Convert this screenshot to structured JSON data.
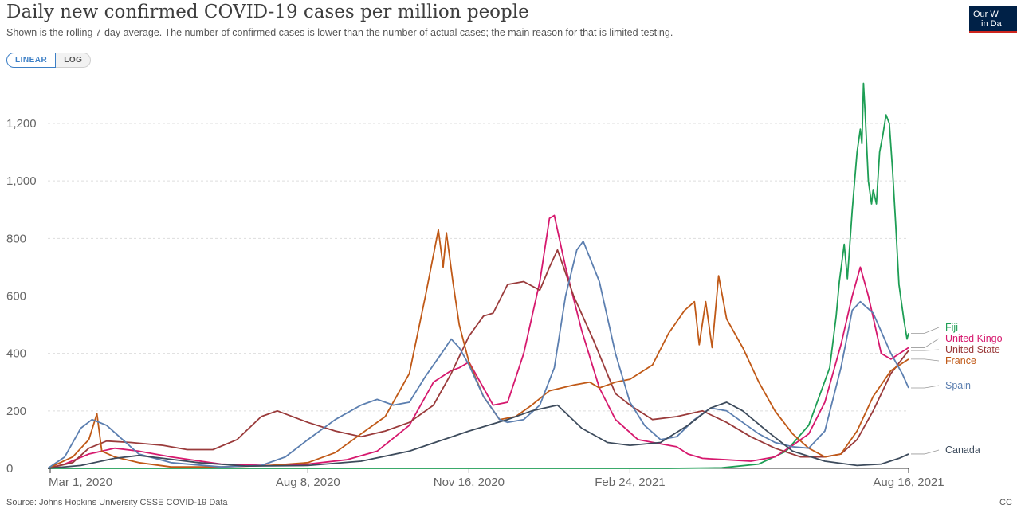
{
  "header": {
    "title": "Daily new confirmed COVID-19 cases per million people",
    "subtitle": "Shown is the rolling 7-day average. The number of confirmed cases is lower than the number of actual cases; the main reason for that is limited testing.",
    "logo_line1": "Our W",
    "logo_line2": "in Da"
  },
  "controls": {
    "linear_label": "LINEAR",
    "log_label": "LOG"
  },
  "footer": {
    "source": "Source: Johns Hopkins University CSSE COVID-19 Data",
    "license": "CC"
  },
  "colors": {
    "grid": "#dddddd",
    "axis": "#333333",
    "tick_text": "#666666"
  },
  "chart_data": {
    "type": "line",
    "title": "Daily new confirmed COVID-19 cases per million people",
    "xlabel": "",
    "ylabel": "",
    "x_range": [
      "2020-02-22",
      "2021-08-16"
    ],
    "x_ticks": [
      {
        "date": "2020-03-01",
        "label": "Mar 1, 2020"
      },
      {
        "date": "2020-08-08",
        "label": "Aug 8, 2020"
      },
      {
        "date": "2020-11-16",
        "label": "Nov 16, 2020"
      },
      {
        "date": "2021-02-24",
        "label": "Feb 24, 2021"
      },
      {
        "date": "2021-08-16",
        "label": "Aug 16, 2021"
      }
    ],
    "ylim": [
      0,
      1300
    ],
    "y_ticks": [
      0,
      200,
      400,
      600,
      800,
      1000,
      1200
    ],
    "y_tick_labels": [
      "0",
      "200",
      "400",
      "600",
      "800",
      "1,000",
      "1,200"
    ],
    "grid": true,
    "legend": "right-end labels",
    "series": [
      {
        "name": "Fiji",
        "color": "#1e9e55",
        "points": [
          [
            "2020-02-22",
            0
          ],
          [
            "2021-03-20",
            0
          ],
          [
            "2021-04-22",
            2
          ],
          [
            "2021-05-15",
            15
          ],
          [
            "2021-06-01",
            60
          ],
          [
            "2021-06-15",
            150
          ],
          [
            "2021-06-28",
            350
          ],
          [
            "2021-07-02",
            530
          ],
          [
            "2021-07-04",
            650
          ],
          [
            "2021-07-07",
            780
          ],
          [
            "2021-07-09",
            660
          ],
          [
            "2021-07-12",
            900
          ],
          [
            "2021-07-15",
            1100
          ],
          [
            "2021-07-17",
            1180
          ],
          [
            "2021-07-18",
            1130
          ],
          [
            "2021-07-19",
            1340
          ],
          [
            "2021-07-20",
            1240
          ],
          [
            "2021-07-22",
            1000
          ],
          [
            "2021-07-24",
            920
          ],
          [
            "2021-07-25",
            970
          ],
          [
            "2021-07-27",
            920
          ],
          [
            "2021-07-29",
            1100
          ],
          [
            "2021-07-31",
            1160
          ],
          [
            "2021-08-02",
            1230
          ],
          [
            "2021-08-04",
            1200
          ],
          [
            "2021-08-06",
            1040
          ],
          [
            "2021-08-08",
            850
          ],
          [
            "2021-08-10",
            640
          ],
          [
            "2021-08-13",
            520
          ],
          [
            "2021-08-15",
            450
          ],
          [
            "2021-08-16",
            470
          ]
        ]
      },
      {
        "name": "United Kingdom",
        "color": "#d6196e",
        "points": [
          [
            "2020-02-22",
            0
          ],
          [
            "2020-03-10",
            15
          ],
          [
            "2020-03-25",
            50
          ],
          [
            "2020-04-10",
            70
          ],
          [
            "2020-04-25",
            60
          ],
          [
            "2020-05-15",
            40
          ],
          [
            "2020-06-15",
            15
          ],
          [
            "2020-07-15",
            10
          ],
          [
            "2020-08-08",
            15
          ],
          [
            "2020-09-01",
            30
          ],
          [
            "2020-09-20",
            60
          ],
          [
            "2020-10-10",
            150
          ],
          [
            "2020-10-25",
            300
          ],
          [
            "2020-11-05",
            340
          ],
          [
            "2020-11-10",
            350
          ],
          [
            "2020-11-16",
            370
          ],
          [
            "2020-11-25",
            280
          ],
          [
            "2020-12-01",
            220
          ],
          [
            "2020-12-10",
            230
          ],
          [
            "2020-12-20",
            400
          ],
          [
            "2020-12-30",
            650
          ],
          [
            "2021-01-05",
            870
          ],
          [
            "2021-01-08",
            880
          ],
          [
            "2021-01-15",
            700
          ],
          [
            "2021-01-25",
            480
          ],
          [
            "2021-02-05",
            280
          ],
          [
            "2021-02-15",
            170
          ],
          [
            "2021-03-01",
            100
          ],
          [
            "2021-03-15",
            85
          ],
          [
            "2021-03-25",
            75
          ],
          [
            "2021-04-01",
            50
          ],
          [
            "2021-04-10",
            35
          ],
          [
            "2021-04-25",
            30
          ],
          [
            "2021-05-10",
            25
          ],
          [
            "2021-05-25",
            40
          ],
          [
            "2021-06-05",
            80
          ],
          [
            "2021-06-15",
            120
          ],
          [
            "2021-06-25",
            230
          ],
          [
            "2021-07-05",
            430
          ],
          [
            "2021-07-12",
            600
          ],
          [
            "2021-07-17",
            700
          ],
          [
            "2021-07-22",
            600
          ],
          [
            "2021-07-30",
            400
          ],
          [
            "2021-08-05",
            380
          ],
          [
            "2021-08-16",
            420
          ]
        ]
      },
      {
        "name": "United States",
        "color": "#9a3b3b",
        "points": [
          [
            "2020-02-22",
            0
          ],
          [
            "2020-03-15",
            20
          ],
          [
            "2020-03-25",
            70
          ],
          [
            "2020-04-05",
            95
          ],
          [
            "2020-04-20",
            90
          ],
          [
            "2020-05-10",
            80
          ],
          [
            "2020-05-25",
            65
          ],
          [
            "2020-06-10",
            65
          ],
          [
            "2020-06-25",
            100
          ],
          [
            "2020-07-10",
            180
          ],
          [
            "2020-07-20",
            200
          ],
          [
            "2020-08-08",
            160
          ],
          [
            "2020-08-25",
            130
          ],
          [
            "2020-09-10",
            110
          ],
          [
            "2020-09-25",
            130
          ],
          [
            "2020-10-10",
            160
          ],
          [
            "2020-10-25",
            220
          ],
          [
            "2020-11-05",
            330
          ],
          [
            "2020-11-16",
            460
          ],
          [
            "2020-11-25",
            530
          ],
          [
            "2020-12-01",
            540
          ],
          [
            "2020-12-10",
            640
          ],
          [
            "2020-12-20",
            650
          ],
          [
            "2020-12-30",
            620
          ],
          [
            "2021-01-05",
            700
          ],
          [
            "2021-01-10",
            760
          ],
          [
            "2021-01-20",
            600
          ],
          [
            "2021-02-01",
            450
          ],
          [
            "2021-02-15",
            260
          ],
          [
            "2021-02-24",
            220
          ],
          [
            "2021-03-10",
            170
          ],
          [
            "2021-03-25",
            180
          ],
          [
            "2021-04-10",
            200
          ],
          [
            "2021-04-25",
            160
          ],
          [
            "2021-05-10",
            110
          ],
          [
            "2021-05-25",
            70
          ],
          [
            "2021-06-10",
            40
          ],
          [
            "2021-06-25",
            40
          ],
          [
            "2021-07-05",
            50
          ],
          [
            "2021-07-15",
            100
          ],
          [
            "2021-07-25",
            200
          ],
          [
            "2021-08-05",
            330
          ],
          [
            "2021-08-16",
            410
          ]
        ]
      },
      {
        "name": "France",
        "color": "#c05917",
        "points": [
          [
            "2020-02-22",
            0
          ],
          [
            "2020-03-15",
            40
          ],
          [
            "2020-03-25",
            100
          ],
          [
            "2020-03-30",
            190
          ],
          [
            "2020-04-02",
            60
          ],
          [
            "2020-04-10",
            40
          ],
          [
            "2020-04-25",
            20
          ],
          [
            "2020-05-15",
            5
          ],
          [
            "2020-06-15",
            5
          ],
          [
            "2020-07-15",
            10
          ],
          [
            "2020-08-08",
            20
          ],
          [
            "2020-08-25",
            55
          ],
          [
            "2020-09-10",
            120
          ],
          [
            "2020-09-25",
            180
          ],
          [
            "2020-10-10",
            330
          ],
          [
            "2020-10-20",
            600
          ],
          [
            "2020-10-28",
            830
          ],
          [
            "2020-10-31",
            700
          ],
          [
            "2020-11-02",
            820
          ],
          [
            "2020-11-06",
            650
          ],
          [
            "2020-11-10",
            500
          ],
          [
            "2020-11-16",
            370
          ],
          [
            "2020-11-25",
            250
          ],
          [
            "2020-12-05",
            170
          ],
          [
            "2020-12-15",
            180
          ],
          [
            "2020-12-25",
            220
          ],
          [
            "2021-01-05",
            270
          ],
          [
            "2021-01-20",
            290
          ],
          [
            "2021-01-30",
            300
          ],
          [
            "2021-02-05",
            280
          ],
          [
            "2021-02-15",
            300
          ],
          [
            "2021-02-24",
            310
          ],
          [
            "2021-03-10",
            360
          ],
          [
            "2021-03-20",
            470
          ],
          [
            "2021-03-30",
            550
          ],
          [
            "2021-04-05",
            580
          ],
          [
            "2021-04-08",
            430
          ],
          [
            "2021-04-12",
            580
          ],
          [
            "2021-04-16",
            420
          ],
          [
            "2021-04-20",
            670
          ],
          [
            "2021-04-25",
            520
          ],
          [
            "2021-05-05",
            420
          ],
          [
            "2021-05-15",
            300
          ],
          [
            "2021-05-25",
            200
          ],
          [
            "2021-06-05",
            120
          ],
          [
            "2021-06-15",
            70
          ],
          [
            "2021-06-25",
            40
          ],
          [
            "2021-07-05",
            50
          ],
          [
            "2021-07-15",
            130
          ],
          [
            "2021-07-25",
            250
          ],
          [
            "2021-08-05",
            340
          ],
          [
            "2021-08-16",
            380
          ]
        ]
      },
      {
        "name": "Spain",
        "color": "#5c7fb0",
        "points": [
          [
            "2020-02-22",
            0
          ],
          [
            "2020-03-10",
            40
          ],
          [
            "2020-03-20",
            140
          ],
          [
            "2020-03-27",
            170
          ],
          [
            "2020-04-05",
            150
          ],
          [
            "2020-04-15",
            100
          ],
          [
            "2020-04-25",
            50
          ],
          [
            "2020-05-15",
            20
          ],
          [
            "2020-06-15",
            5
          ],
          [
            "2020-07-10",
            10
          ],
          [
            "2020-07-25",
            40
          ],
          [
            "2020-08-08",
            100
          ],
          [
            "2020-08-25",
            170
          ],
          [
            "2020-09-10",
            220
          ],
          [
            "2020-09-20",
            240
          ],
          [
            "2020-09-30",
            220
          ],
          [
            "2020-10-10",
            230
          ],
          [
            "2020-10-20",
            320
          ],
          [
            "2020-10-30",
            400
          ],
          [
            "2020-11-05",
            450
          ],
          [
            "2020-11-10",
            420
          ],
          [
            "2020-11-16",
            360
          ],
          [
            "2020-11-25",
            250
          ],
          [
            "2020-12-05",
            170
          ],
          [
            "2020-12-10",
            160
          ],
          [
            "2020-12-20",
            170
          ],
          [
            "2020-12-30",
            220
          ],
          [
            "2021-01-08",
            350
          ],
          [
            "2021-01-15",
            600
          ],
          [
            "2021-01-22",
            760
          ],
          [
            "2021-01-26",
            790
          ],
          [
            "2021-02-05",
            650
          ],
          [
            "2021-02-15",
            400
          ],
          [
            "2021-02-24",
            230
          ],
          [
            "2021-03-05",
            150
          ],
          [
            "2021-03-15",
            100
          ],
          [
            "2021-03-25",
            110
          ],
          [
            "2021-04-05",
            170
          ],
          [
            "2021-04-15",
            210
          ],
          [
            "2021-04-25",
            200
          ],
          [
            "2021-05-05",
            160
          ],
          [
            "2021-05-15",
            120
          ],
          [
            "2021-05-25",
            90
          ],
          [
            "2021-06-05",
            75
          ],
          [
            "2021-06-15",
            70
          ],
          [
            "2021-06-25",
            130
          ],
          [
            "2021-07-05",
            350
          ],
          [
            "2021-07-12",
            550
          ],
          [
            "2021-07-17",
            580
          ],
          [
            "2021-07-25",
            540
          ],
          [
            "2021-08-05",
            400
          ],
          [
            "2021-08-12",
            330
          ],
          [
            "2021-08-16",
            280
          ]
        ]
      },
      {
        "name": "Canada",
        "color": "#3d4b5c",
        "points": [
          [
            "2020-02-22",
            0
          ],
          [
            "2020-03-20",
            10
          ],
          [
            "2020-04-10",
            35
          ],
          [
            "2020-04-25",
            45
          ],
          [
            "2020-05-10",
            35
          ],
          [
            "2020-06-01",
            20
          ],
          [
            "2020-07-01",
            8
          ],
          [
            "2020-08-08",
            10
          ],
          [
            "2020-09-10",
            25
          ],
          [
            "2020-10-10",
            60
          ],
          [
            "2020-11-16",
            130
          ],
          [
            "2020-12-10",
            170
          ],
          [
            "2020-12-25",
            200
          ],
          [
            "2021-01-10",
            220
          ],
          [
            "2021-01-25",
            140
          ],
          [
            "2021-02-10",
            90
          ],
          [
            "2021-02-24",
            80
          ],
          [
            "2021-03-15",
            90
          ],
          [
            "2021-04-01",
            150
          ],
          [
            "2021-04-15",
            210
          ],
          [
            "2021-04-25",
            230
          ],
          [
            "2021-05-05",
            200
          ],
          [
            "2021-05-20",
            130
          ],
          [
            "2021-06-05",
            60
          ],
          [
            "2021-06-25",
            25
          ],
          [
            "2021-07-15",
            10
          ],
          [
            "2021-07-30",
            15
          ],
          [
            "2021-08-10",
            35
          ],
          [
            "2021-08-16",
            50
          ]
        ]
      }
    ],
    "end_labels": [
      {
        "series": "Fiji",
        "text": "Fiji"
      },
      {
        "series": "United Kingdom",
        "text": "United Kingo"
      },
      {
        "series": "United States",
        "text": "United State"
      },
      {
        "series": "France",
        "text": "France"
      },
      {
        "series": "Spain",
        "text": "Spain"
      },
      {
        "series": "Canada",
        "text": "Canada"
      }
    ]
  }
}
